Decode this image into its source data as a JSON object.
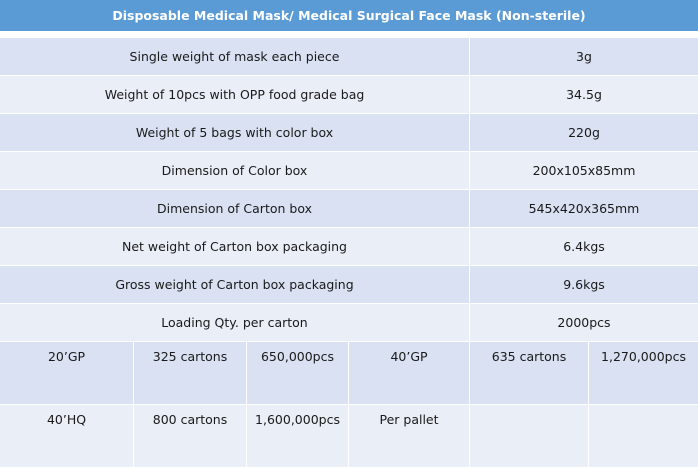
{
  "title": "Disposable Medical Mask/ Medical Surgical Face Mask (Non-sterile)",
  "rows": [
    {
      "label": "Single weight of mask each piece",
      "value": "3g"
    },
    {
      "label": "Weight of 10pcs with OPP food grade bag",
      "value": "34.5g"
    },
    {
      "label": "Weight of 5 bags with color box",
      "value": "220g"
    },
    {
      "label": "Dimension of Color box",
      "value": "200x105x85mm"
    },
    {
      "label": "Dimension of Carton box",
      "value": "545x420x365mm"
    },
    {
      "label": "Net weight of Carton box packaging",
      "value": "6.4kgs"
    },
    {
      "label": "Gross weight of Carton box packaging",
      "value": "9.6kgs"
    },
    {
      "label": "Loading Qty. per carton",
      "value": "2000pcs"
    }
  ],
  "containers": [
    [
      "20’GP",
      "325 cartons",
      "650,000pcs",
      "40’GP",
      "635 cartons",
      "1,270,000pcs"
    ],
    [
      "40’HQ",
      "800 cartons",
      "1,600,000pcs",
      "Per pallet",
      "",
      ""
    ]
  ],
  "colors": {
    "header": "#5b9bd5",
    "row_shade": "#d9e1f2",
    "row_plain": "#eaeef7",
    "border": "#ffffff"
  }
}
